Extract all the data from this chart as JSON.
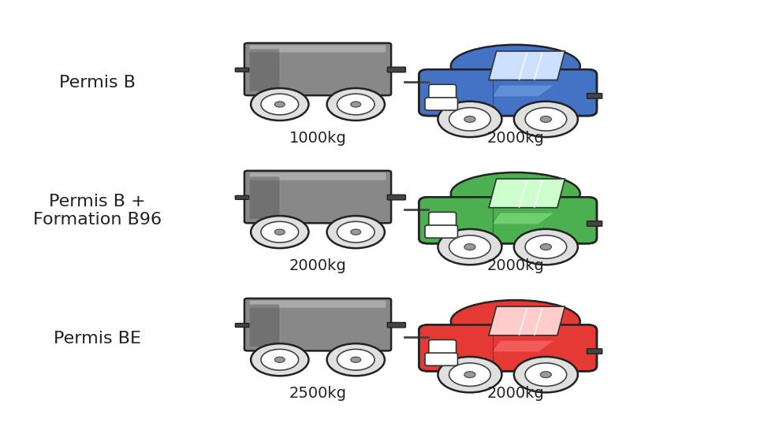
{
  "background_color": "#ffffff",
  "rows": [
    {
      "label": "Permis B",
      "trailer_weight": "1000kg",
      "car_weight": "2000kg",
      "car_color": "#4472c4",
      "car_color_light": "#7aaee8",
      "car_color_dark": "#2a4a8a",
      "car_window": "#cce0ff"
    },
    {
      "label": "Permis B +\nFormation B96",
      "trailer_weight": "2000kg",
      "car_weight": "2000kg",
      "car_color": "#4caf50",
      "car_color_light": "#90ee90",
      "car_color_dark": "#2e7d32",
      "car_window": "#ccffcc"
    },
    {
      "label": "Permis BE",
      "trailer_weight": "2500kg",
      "car_weight": "2000kg",
      "car_color": "#e53935",
      "car_color_light": "#ff8080",
      "car_color_dark": "#b71c1c",
      "car_window": "#ffcccc"
    }
  ],
  "trailer_color": "#888888",
  "trailer_color_dark": "#555555",
  "trailer_color_light": "#aaaaaa",
  "label_fontsize": 16,
  "weight_fontsize": 14
}
